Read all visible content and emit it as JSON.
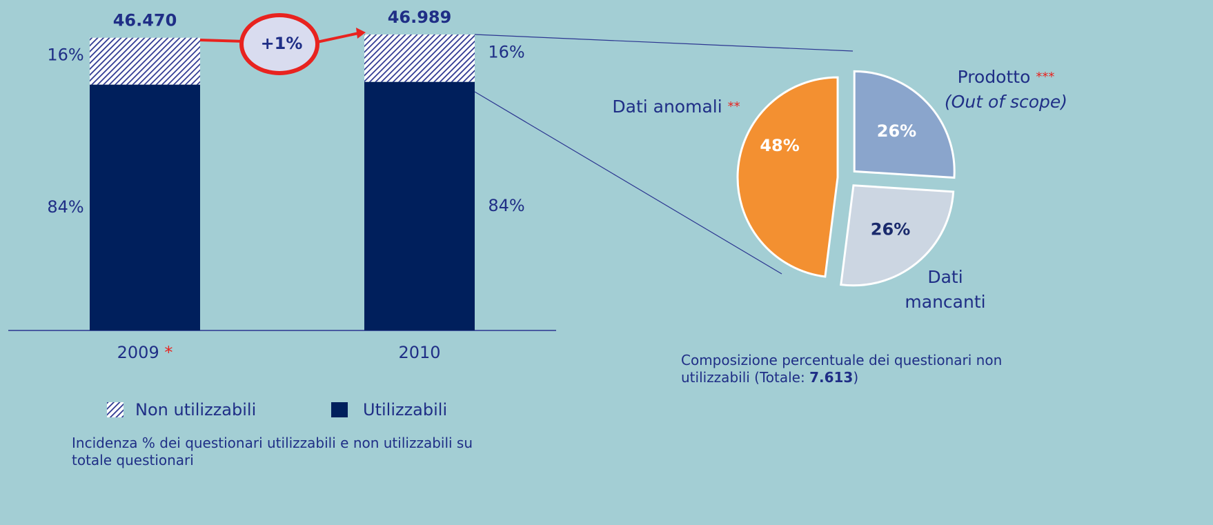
{
  "chart_data": [
    {
      "type": "stacked_bar",
      "categories": [
        "2009",
        "2010"
      ],
      "category_notes": [
        "*",
        null
      ],
      "series": [
        {
          "name": "Utilizzabili",
          "color": "#001f5c",
          "values": [
            84,
            84
          ],
          "value_labels": [
            "84%",
            "84%"
          ]
        },
        {
          "name": "Non utilizzabili",
          "color": "#2b3590",
          "pattern": "hatch",
          "values": [
            16,
            16
          ],
          "value_labels": [
            "16%",
            "16%"
          ]
        }
      ],
      "totals": {
        "values": [
          46470,
          46989
        ],
        "value_labels": [
          "46.470",
          "46.989"
        ]
      },
      "annotation": "+1%",
      "legend": "bottom",
      "caption": "Incidenza % dei questionari utilizzabili e non utilizzabili su totale questionari"
    },
    {
      "type": "pie",
      "categories": [
        "Prodotto",
        "Dati mancanti",
        "Dati anomali"
      ],
      "notes": [
        "***",
        null,
        "**"
      ],
      "sublabels": [
        "(Out of scope)",
        null,
        null
      ],
      "values": [
        26,
        26,
        48
      ],
      "value_labels": [
        "26%",
        "26%",
        "48%"
      ],
      "colors": [
        "#8aa5cc",
        "#ccd6e2",
        "#f39031"
      ],
      "label_colors": [
        "#ffffff",
        "#1a2a6c",
        "#ffffff"
      ],
      "caption_before": "Composizione percentuale dei questionari non utilizzabili (Totale:",
      "caption_total": {
        "value": 7613,
        "label": "7.613"
      },
      "caption_after": ")"
    }
  ]
}
